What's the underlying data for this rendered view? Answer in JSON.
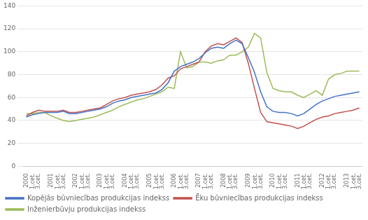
{
  "chart_data": {
    "type": "line",
    "categories": [
      "2000\n1.cet.",
      null,
      "3.cet.",
      null,
      "2001\n1.cet.",
      null,
      "3.cet.",
      null,
      "2002\n1.cet.",
      null,
      "3.cet.",
      null,
      "2003\n1.cet.",
      null,
      "3.cet.",
      null,
      "2004\n1.cet.",
      null,
      "3.cet.",
      null,
      "2005\n1.cet.",
      null,
      "3.cet.",
      null,
      "2006\n1.cet.",
      null,
      "3.cet.",
      null,
      "2007\n1.cet.",
      null,
      "3.cet.",
      null,
      "2008\n1.cet.",
      null,
      "3.cet.",
      null,
      "2009\n1.cet.",
      null,
      "3.cet.",
      null,
      "2010\n1.cet.",
      null,
      "3.cet.",
      null,
      "2011\n1.cet.",
      null,
      "3.cet.",
      null,
      "2012\n1.cet.",
      null,
      "3.cet.",
      null,
      "2013\n1.cet.",
      null,
      "3.cet."
    ],
    "series": [
      {
        "name": "Kopējās būvniecības produkcijas indekss",
        "color": "#4472C4",
        "values": [
          43,
          45,
          46,
          47,
          47,
          47,
          48,
          46,
          46,
          47,
          48,
          49,
          50,
          52,
          55,
          57,
          58,
          60,
          61,
          62,
          63,
          64,
          67,
          73,
          83,
          87,
          89,
          91,
          94,
          99,
          103,
          104,
          103,
          107,
          110,
          107,
          95,
          82,
          65,
          52,
          48,
          47,
          47,
          46,
          44,
          46,
          50,
          54,
          57,
          59,
          61,
          62,
          63,
          64,
          65
        ]
      },
      {
        "name": "Ēku būvniecības produkcijas indekss",
        "color": "#C0504D",
        "values": [
          44,
          47,
          49,
          48,
          48,
          48,
          49,
          47,
          47,
          48,
          49,
          50,
          51,
          54,
          57,
          59,
          60,
          62,
          63,
          64,
          65,
          67,
          71,
          77,
          79,
          85,
          87,
          89,
          91,
          100,
          105,
          107,
          106,
          109,
          112,
          108,
          90,
          68,
          47,
          39,
          38,
          37,
          36,
          35,
          33,
          35,
          38,
          41,
          43,
          44,
          46,
          47,
          48,
          49,
          51
        ]
      },
      {
        "name": "Inženierbūvju produkcijas indekss",
        "color": "#9BBB59",
        "values": [
          46,
          46,
          47,
          47,
          44,
          42,
          40,
          39,
          40,
          41,
          42,
          43,
          45,
          47,
          49,
          52,
          54,
          56,
          58,
          59,
          61,
          63,
          65,
          69,
          68,
          100,
          86,
          87,
          91,
          91,
          90,
          92,
          93,
          97,
          97,
          100,
          104,
          116,
          112,
          82,
          68,
          66,
          65,
          65,
          62,
          60,
          63,
          66,
          62,
          76,
          80,
          81,
          83,
          83,
          83
        ]
      }
    ],
    "ylim": [
      0,
      140
    ],
    "yticks": [
      0,
      20,
      40,
      60,
      80,
      100,
      120,
      140
    ],
    "grid": true,
    "legend": "bottom"
  }
}
